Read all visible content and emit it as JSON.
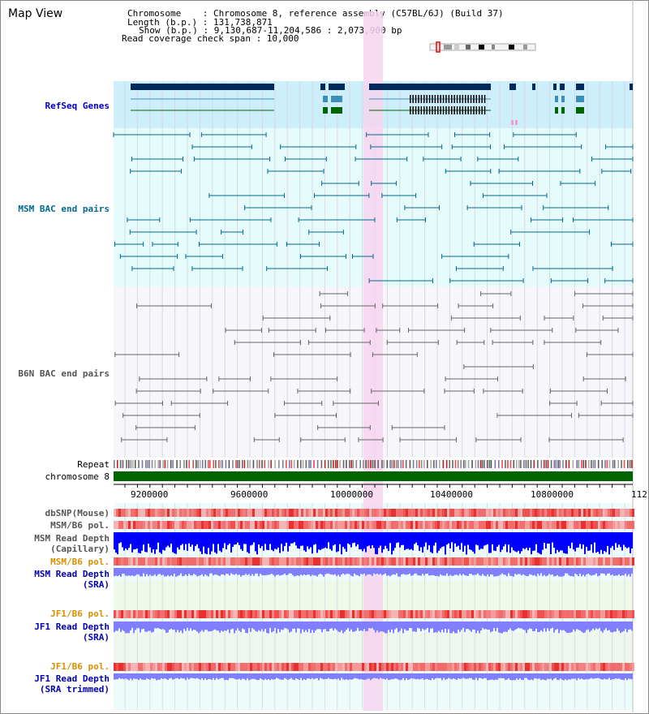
{
  "window": {
    "title": "Map View"
  },
  "header": {
    "chromosome": "Chromosome    : Chromosome 8, reference assembly (C57BL/6J) (Build 37)",
    "length": "Length (b.p.) : 131,738,871",
    "show": "Show (b.p.) : 9,130,687-11,204,586 : 2,073,900 bp",
    "span": "Read coverage check span : 10,000"
  },
  "tracks": {
    "refseq": "RefSeq Genes",
    "msm_bac": "MSM BAC end pairs",
    "b6n_bac": "B6N BAC end pairs",
    "repeat": "Repeat",
    "chromosome": "chromosome 8"
  },
  "axis": {
    "ticks": [
      "9200000",
      "9600000",
      "10000000",
      "10400000",
      "10800000",
      "112"
    ]
  },
  "lower_tracks": {
    "dbsnp": "dbSNP(Mouse)",
    "msm_b6_pol_1": "MSM/B6 pol.",
    "msm_read_depth_cap_1": "MSM Read Depth",
    "msm_read_depth_cap_2": "(Capillary)",
    "msm_b6_pol_2": "MSM/B6 pol.",
    "msm_read_depth_sra_1": "MSM Read Depth",
    "msm_read_depth_sra_2": "(SRA)",
    "jf1_b6_pol_1": "JF1/B6 pol.",
    "jf1_read_depth_sra_1": "JF1 Read Depth",
    "jf1_read_depth_sra_2": "(SRA)",
    "jf1_b6_pol_2": "JF1/B6 pol.",
    "jf1_read_depth_trim_1": "JF1 Read Depth",
    "jf1_read_depth_trim_2": "(SRA trimmed)"
  },
  "colors": {
    "refseq_bg": "#cdeefb",
    "msm_bg": "#e6fbfb",
    "b6n_bg": "#f6f6fb",
    "highlight": "#f7d4ee",
    "refseq_label": "#0000c0",
    "msm_label": "#006b8f",
    "b6n_label": "#555555",
    "orange_label": "#d89000",
    "blue_label": "#0000b0",
    "gene_dark": "#002a5c",
    "gene_mid": "#3c8db8",
    "gene_green": "#006400",
    "msm_pair": "#006b8f",
    "b6n_pair": "#666666",
    "depth_cap": "#0000ff",
    "depth_sra": "#7f7fff",
    "chr_green": "#006400"
  }
}
